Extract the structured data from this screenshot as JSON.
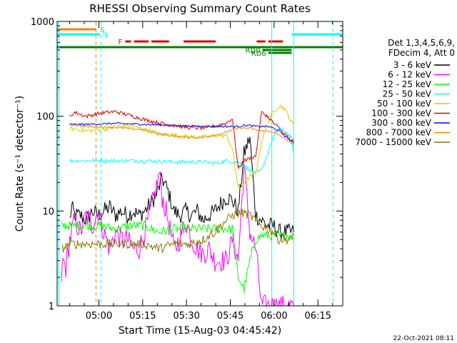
{
  "chart_data": {
    "type": "line",
    "title": "RHESSI Observing Summary Count Rates",
    "xlabel": "Start Time (15-Aug-03 04:45:42)",
    "ylabel": "Count Rate (s⁻¹ detector⁻¹)",
    "y_scale": "log",
    "ylim": [
      1,
      1000
    ],
    "xlim": [
      "04:45:42",
      "06:23:30"
    ],
    "x_ticks": [
      "05:00",
      "05:15",
      "05:30",
      "05:45",
      "06:00",
      "06:15"
    ],
    "y_ticks": [
      "1",
      "10",
      "100",
      "1000"
    ],
    "timestamp": "22-Oct-2021 08:11",
    "legend": {
      "position": "right",
      "header_line1": "Det 1,3,4,5,6,9,",
      "header_line2": "FDecim 4, Att 0",
      "entries": [
        {
          "label": "3 - 6 keV",
          "color": "#000000"
        },
        {
          "label": "6 - 12 keV",
          "color": "#ff00ff"
        },
        {
          "label": "12 - 25 keV",
          "color": "#00ff00"
        },
        {
          "label": "25 - 50 keV",
          "color": "#00ffff"
        },
        {
          "label": "50 - 100 keV",
          "color": "#d2d200"
        },
        {
          "label": "100 - 300 keV",
          "color": "#e00000"
        },
        {
          "label": "300 - 800 keV",
          "color": "#0000ff"
        },
        {
          "label": "800 - 7000 keV",
          "color": "#ff8000"
        },
        {
          "label": "7000 - 15000 keV",
          "color": "#8b7500"
        }
      ]
    },
    "flags": [
      {
        "label": "S",
        "color": "#ff8000",
        "start": "04:45:42",
        "end": "04:59:00"
      },
      {
        "label": "N",
        "color": "#00ffff",
        "start": "04:45:42",
        "end": "05:00:30",
        "start2": "06:06:00",
        "end2": "06:23:30"
      },
      {
        "label": "F",
        "color": "#e00000",
        "segments": [
          [
            "05:09:00",
            "05:11:00"
          ],
          [
            "05:12:00",
            "05:17:00"
          ],
          [
            "05:18:00",
            "05:24:00"
          ],
          [
            "05:29:00",
            "05:40:00"
          ],
          [
            "05:54:00",
            "05:57:00"
          ],
          [
            "05:58:00",
            "06:03:00"
          ]
        ]
      },
      {
        "label": "RD0",
        "color": "#008000",
        "start": "05:56:00",
        "end": "06:06:00"
      },
      {
        "label": "RD6",
        "color": "#008000",
        "start": "05:58:00",
        "end": "06:06:00"
      },
      {
        "label": "",
        "color": "#008000",
        "start": "04:45:42",
        "end": "06:23:30"
      }
    ],
    "series": [
      {
        "name": "3 - 6 keV",
        "color": "#000000",
        "t": [
          4.3,
          5,
          6,
          8,
          10,
          12,
          14,
          16,
          18,
          20,
          22,
          24,
          26,
          28,
          30,
          32,
          34,
          36,
          38,
          40,
          42,
          44,
          46,
          48,
          50,
          52,
          54,
          56,
          58,
          60,
          62,
          64,
          66,
          68,
          70,
          72,
          74,
          76,
          78,
          80,
          81
        ],
        "values": [
          8,
          11,
          9,
          9,
          8,
          10,
          9,
          10,
          11,
          9,
          10,
          9,
          10,
          9,
          10,
          12,
          15,
          22,
          16,
          10,
          9,
          10,
          9,
          10,
          8,
          9,
          10,
          12,
          14,
          13,
          10,
          40,
          60,
          9,
          8,
          7,
          7,
          6,
          6,
          6,
          6
        ]
      },
      {
        "name": "6 - 12 keV",
        "color": "#ff00ff",
        "t": [
          1.5,
          2,
          3,
          4.3,
          5,
          6,
          8,
          10,
          12,
          14,
          16,
          18,
          20,
          22,
          24,
          26,
          28,
          30,
          32,
          34,
          35,
          36,
          38,
          40,
          42,
          44,
          46,
          48,
          50,
          52,
          54,
          56,
          58,
          60,
          62,
          64,
          66,
          68,
          70,
          72,
          74,
          76,
          78,
          80,
          81
        ],
        "values": [
          2,
          3,
          2.5,
          5,
          6,
          8,
          6,
          9,
          7,
          10,
          6,
          4,
          6,
          5,
          5,
          4,
          4,
          6,
          10,
          18,
          25,
          14,
          8,
          4,
          5,
          8,
          5,
          4,
          3.5,
          4,
          3,
          3,
          3,
          5,
          3,
          30,
          6,
          4,
          1,
          1,
          1,
          1,
          1,
          1,
          1
        ]
      },
      {
        "name": "12 - 25 keV",
        "color": "#00ff00",
        "t": [
          1.5,
          5,
          10,
          15,
          20,
          25,
          30,
          35,
          40,
          45,
          50,
          55,
          60,
          62,
          64,
          66,
          68,
          70,
          75,
          80,
          81
        ],
        "values": [
          7,
          7,
          7,
          7,
          6.5,
          7,
          7,
          6,
          6.5,
          6.5,
          6.5,
          6.5,
          6.5,
          2,
          1.5,
          3,
          5,
          5.5,
          5.5,
          5.5,
          5.5
        ]
      },
      {
        "name": "25 - 50 keV",
        "color": "#00ffff",
        "t": [
          4.3,
          10,
          20,
          30,
          40,
          45,
          50,
          55,
          58,
          60,
          62,
          64,
          66,
          68,
          70,
          72,
          74,
          76,
          78,
          80,
          81
        ],
        "values": [
          34,
          34,
          34,
          34,
          33,
          33,
          33,
          32,
          34,
          33,
          33,
          30,
          27,
          25,
          27,
          40,
          60,
          75,
          70,
          60,
          40
        ]
      },
      {
        "name": "50 - 100 keV",
        "color": "#d2d200",
        "t": [
          4.3,
          10,
          15,
          20,
          25,
          30,
          35,
          40,
          45,
          50,
          55,
          58,
          60,
          62,
          64,
          66,
          68,
          70,
          72,
          74,
          76,
          78,
          80,
          81
        ],
        "values": [
          75,
          70,
          72,
          78,
          80,
          72,
          65,
          63,
          61,
          60,
          63,
          62,
          45,
          18,
          20,
          23,
          25,
          55,
          80,
          110,
          130,
          120,
          90,
          80
        ]
      },
      {
        "name": "100 - 300 keV",
        "color": "#e00000",
        "t": [
          4.3,
          6,
          10,
          15,
          20,
          25,
          30,
          35,
          40,
          45,
          50,
          55,
          58,
          60,
          62,
          64,
          66,
          68,
          70,
          72,
          74,
          76,
          78,
          80,
          81
        ],
        "values": [
          100,
          110,
          100,
          108,
          112,
          102,
          92,
          85,
          80,
          76,
          75,
          80,
          85,
          95,
          28,
          34,
          36,
          38,
          110,
          100,
          85,
          75,
          65,
          55,
          55
        ]
      },
      {
        "name": "300 - 800 keV",
        "color": "#0000ff",
        "t": [
          4.3,
          10,
          20,
          30,
          40,
          45,
          50,
          55,
          58,
          60,
          62,
          64,
          66,
          68,
          70,
          72,
          74,
          76,
          78,
          80,
          81
        ],
        "values": [
          82,
          82,
          84,
          82,
          80,
          79,
          78,
          78,
          78,
          78,
          78,
          80,
          80,
          78,
          78,
          78,
          75,
          70,
          62,
          55,
          52
        ]
      },
      {
        "name": "800 - 7000 keV",
        "color": "#ff8000",
        "t": [
          4.3,
          10,
          20,
          30,
          35,
          40,
          45,
          50,
          55,
          58,
          60,
          62,
          64,
          66,
          68,
          70,
          72,
          74,
          76,
          78,
          80,
          81
        ],
        "values": [
          82,
          78,
          76,
          72,
          65,
          62,
          60,
          60,
          64,
          68,
          72,
          75,
          75,
          75,
          72,
          70,
          70,
          68,
          63,
          58,
          52,
          50
        ]
      },
      {
        "name": "7000 - 15000 keV",
        "color": "#8b7500",
        "t": [
          1.5,
          5,
          10,
          15,
          20,
          25,
          30,
          35,
          40,
          45,
          50,
          52,
          54,
          56,
          58,
          60,
          62,
          64,
          66,
          68,
          70,
          72,
          74,
          76,
          78,
          80,
          81
        ],
        "values": [
          4,
          4.5,
          4.5,
          4.5,
          4.5,
          4.5,
          4.5,
          4,
          4.5,
          4.5,
          5,
          5.5,
          6,
          7,
          8,
          9,
          9.5,
          9.5,
          9,
          8,
          7,
          6.5,
          6,
          5,
          5,
          5,
          5
        ]
      }
    ]
  }
}
